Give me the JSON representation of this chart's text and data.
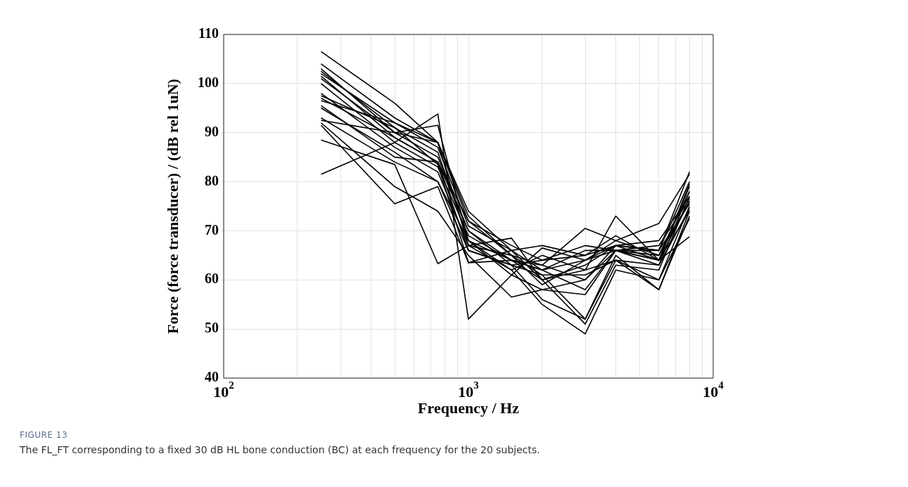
{
  "chart_data": {
    "type": "line",
    "xlabel": "Frequency / Hz",
    "ylabel": "Force (force transducer) / (dB rel 1uN)",
    "annotations": [
      "FIGURE 13",
      "The FL_FT corresponding to a fixed 30 dB HL bone conduction (BC) at each frequency for the 20 subjects."
    ],
    "log": "x",
    "grid": true,
    "legend": false,
    "marker": "none",
    "line_style": "solid",
    "xlim": [
      100,
      10000
    ],
    "ylim": [
      40,
      110
    ],
    "yticks": [
      40,
      50,
      60,
      70,
      80,
      90,
      100,
      110
    ],
    "xticks": [
      {
        "value": 100,
        "label": "10$^{2}$"
      },
      {
        "value": 200,
        "label": null
      },
      {
        "value": 300,
        "label": null
      },
      {
        "value": 400,
        "label": null
      },
      {
        "value": 500,
        "label": null
      },
      {
        "value": 600,
        "label": null
      },
      {
        "value": 700,
        "label": null
      },
      {
        "value": 800,
        "label": null
      },
      {
        "value": 900,
        "label": null
      },
      {
        "value": 1000,
        "label": "10$^{3}$"
      },
      {
        "value": 2000,
        "label": null
      },
      {
        "value": 3000,
        "label": null
      },
      {
        "value": 4000,
        "label": null
      },
      {
        "value": 5000,
        "label": null
      },
      {
        "value": 6000,
        "label": null
      },
      {
        "value": 7000,
        "label": null
      },
      {
        "value": 8000,
        "label": null
      },
      {
        "value": 9000,
        "label": null
      },
      {
        "value": 10000,
        "label": "10$^{4}$"
      }
    ],
    "x": [
      250,
      500,
      750,
      1000,
      1500,
      2000,
      3000,
      4000,
      6000,
      8000
    ],
    "series": [
      {
        "color": "#000000",
        "values": [
          106.5,
          96,
          88,
          74,
          66,
          62,
          58,
          66,
          64,
          76
        ]
      },
      {
        "color": "#000000",
        "values": [
          104,
          93,
          88,
          72,
          65,
          61,
          52,
          64,
          63,
          78
        ]
      },
      {
        "color": "#000000",
        "values": [
          103,
          90,
          85,
          70,
          64,
          60,
          51,
          63,
          62,
          77
        ]
      },
      {
        "color": "#000000",
        "values": [
          102.5,
          91,
          86,
          68,
          62,
          55,
          49,
          62,
          60,
          75
        ]
      },
      {
        "color": "#000000",
        "values": [
          102,
          92,
          87,
          71,
          66,
          60,
          63,
          67,
          66,
          82
        ]
      },
      {
        "color": "#000000",
        "values": [
          101.5,
          89,
          84,
          66,
          63,
          61,
          61,
          64,
          58,
          74
        ]
      },
      {
        "color": "#000000",
        "values": [
          101,
          90,
          91.5,
          68,
          64,
          62,
          64,
          67,
          64,
          79
        ]
      },
      {
        "color": "#000000",
        "values": [
          100,
          88,
          83,
          69,
          64,
          62,
          66,
          66,
          67,
          76.5
        ]
      },
      {
        "color": "#000000",
        "values": [
          98,
          87,
          82,
          67,
          65,
          59,
          64,
          68,
          65,
          78
        ]
      },
      {
        "color": "#000000",
        "values": [
          97,
          89,
          84,
          72,
          67,
          64,
          65,
          67,
          66,
          75.5
        ]
      },
      {
        "color": "#000000",
        "values": [
          96.5,
          92,
          88,
          73,
          65,
          63,
          60,
          66,
          63,
          74.5
        ]
      },
      {
        "color": "#000000",
        "values": [
          95.5,
          85,
          84,
          70,
          63,
          56,
          52,
          65,
          58,
          73
        ]
      },
      {
        "color": "#000000",
        "values": [
          95,
          86,
          80,
          68,
          61,
          58,
          57,
          66,
          65,
          76
        ]
      },
      {
        "color": "#000000",
        "values": [
          93,
          84,
          80,
          66,
          63,
          64,
          67,
          66,
          66,
          80
        ]
      },
      {
        "color": "#000000",
        "values": [
          92.5,
          90,
          88,
          67,
          62,
          65,
          62,
          64,
          60,
          72.5
        ]
      },
      {
        "color": "#000000",
        "values": [
          92,
          79,
          74,
          65,
          56.5,
          58,
          60,
          67,
          68,
          77
        ]
      },
      {
        "color": "#000000",
        "values": [
          91.5,
          75.5,
          79,
          63.5,
          64,
          63,
          70.5,
          68,
          71.5,
          81.5
        ]
      },
      {
        "color": "#000000",
        "values": [
          88.5,
          83.5,
          63.3,
          67,
          68.5,
          60,
          62,
          73,
          64,
          74
        ]
      },
      {
        "color": "#000000",
        "values": [
          81.5,
          88,
          93.8,
          52,
          61,
          66.5,
          64,
          66,
          64,
          68.8
        ]
      },
      {
        "color": "#000000",
        "values": [
          97.5,
          91,
          83.5,
          63.5,
          66,
          67,
          65,
          69,
          64,
          79.5
        ]
      }
    ]
  }
}
